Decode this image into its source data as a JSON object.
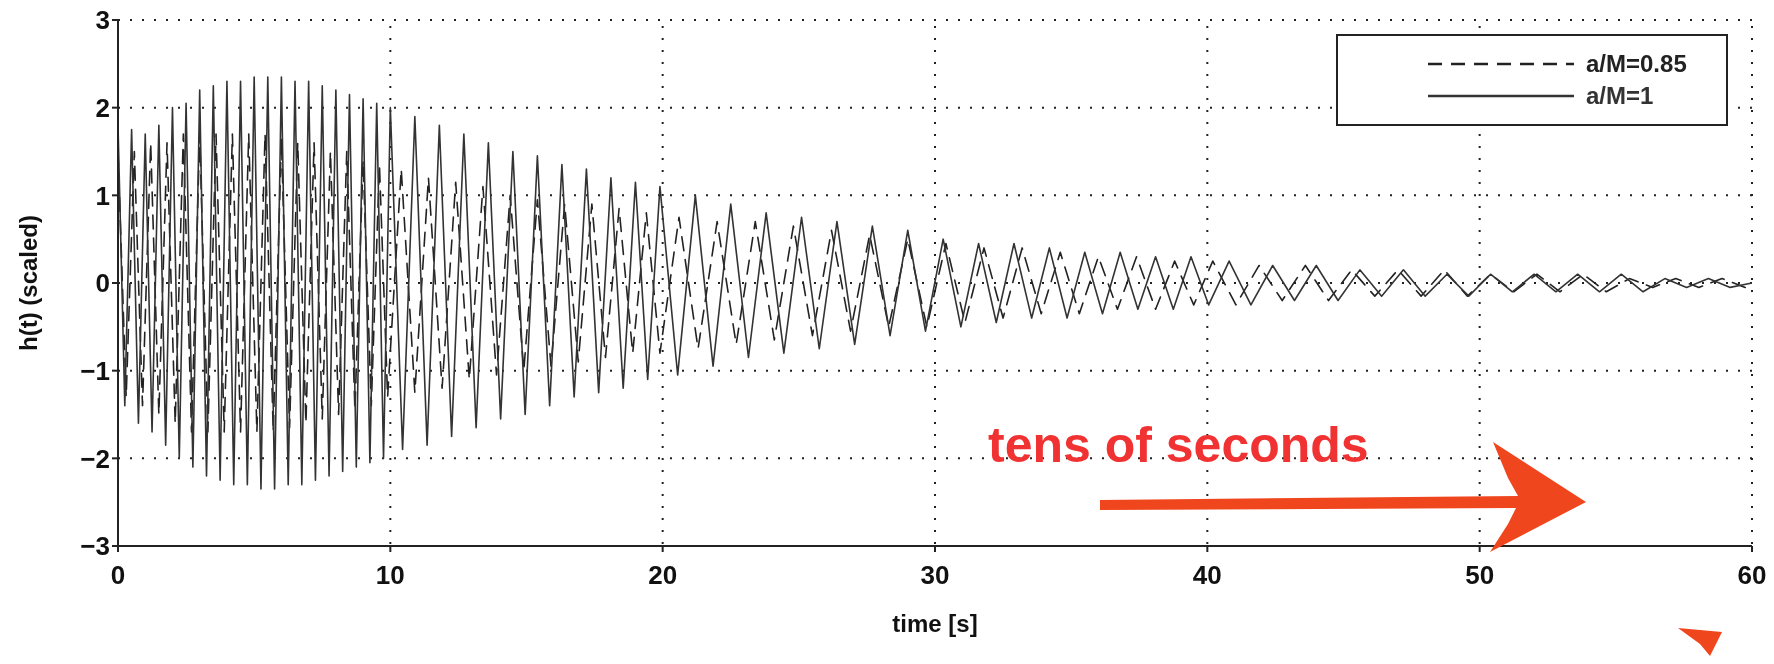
{
  "chart_data": {
    "type": "line",
    "xlabel": "time [s]",
    "ylabel": "h(t) (scaled)",
    "xlim": [
      0,
      60
    ],
    "ylim": [
      -3,
      3
    ],
    "xticks": [
      0,
      10,
      20,
      30,
      40,
      50,
      60
    ],
    "yticks": [
      -3,
      -2,
      -1,
      0,
      1,
      2,
      3
    ],
    "grid": true,
    "legend": "top right",
    "marker": "none",
    "annotations": [
      "tens of seconds"
    ],
    "series": [
      {
        "name": "a/M=0.85",
        "color": "#222222",
        "line_style": "dashed",
        "x": [
          0,
          0.3,
          0.6,
          0.9,
          1.2,
          1.5,
          1.8,
          2.1,
          2.4,
          2.7,
          3.0,
          3.3,
          3.6,
          3.9,
          4.2,
          4.5,
          4.8,
          5.1,
          5.4,
          5.7,
          6.0,
          6.3,
          6.6,
          6.9,
          7.2,
          7.5,
          7.8,
          8.1,
          8.4,
          8.7,
          9.0,
          9.3,
          9.6,
          9.9,
          10.4,
          10.9,
          11.4,
          11.9,
          12.4,
          12.9,
          13.4,
          13.9,
          14.4,
          14.9,
          15.4,
          15.9,
          16.4,
          16.9,
          17.4,
          17.9,
          18.4,
          18.9,
          19.4,
          19.9,
          20.6,
          21.3,
          22.0,
          22.7,
          23.4,
          24.1,
          24.8,
          25.5,
          26.2,
          26.9,
          27.6,
          28.3,
          29.0,
          29.7,
          30.4,
          31.1,
          31.8,
          32.5,
          33.2,
          33.9,
          34.6,
          35.3,
          36.0,
          36.7,
          37.4,
          38.1,
          38.8,
          39.5,
          40.2,
          41.05,
          41.9,
          42.75,
          43.6,
          44.45,
          45.3,
          46.15,
          47.0,
          47.85,
          48.7,
          49.55,
          50.4,
          51.25,
          52.1,
          52.95,
          53.8,
          54.65,
          55.5,
          56.35,
          57.2,
          58.05,
          58.9,
          59.75
        ],
        "values": [
          1.5,
          -1.3,
          1.5,
          -1.4,
          1.6,
          -1.5,
          1.6,
          -1.6,
          1.7,
          -1.7,
          1.7,
          -1.7,
          1.7,
          -1.7,
          1.7,
          -1.7,
          1.7,
          -1.7,
          1.7,
          -1.7,
          1.65,
          -1.65,
          1.6,
          -1.6,
          1.6,
          -1.55,
          1.5,
          -1.5,
          1.5,
          -1.45,
          1.4,
          -1.4,
          1.35,
          -1.3,
          1.3,
          -1.25,
          1.2,
          -1.2,
          1.15,
          -1.1,
          1.1,
          -1.05,
          1.0,
          -1.0,
          0.95,
          -0.95,
          0.9,
          -0.9,
          0.9,
          -0.85,
          0.85,
          -0.8,
          0.8,
          -0.8,
          0.75,
          -0.75,
          0.7,
          -0.7,
          0.7,
          -0.65,
          0.65,
          -0.6,
          0.6,
          -0.55,
          0.55,
          -0.5,
          0.5,
          -0.5,
          0.45,
          -0.45,
          0.4,
          -0.4,
          0.4,
          -0.35,
          0.35,
          -0.35,
          0.3,
          -0.3,
          0.3,
          -0.3,
          0.25,
          -0.25,
          0.25,
          -0.25,
          0.2,
          -0.2,
          0.2,
          -0.2,
          0.15,
          -0.15,
          0.15,
          -0.15,
          0.15,
          -0.15,
          0.1,
          -0.1,
          0.1,
          -0.1,
          0.1,
          -0.1,
          0.05,
          -0.05,
          0.05,
          -0.05,
          0.05,
          -0.05
        ]
      },
      {
        "name": "a/M=1",
        "color": "#333333",
        "line_style": "solid",
        "x": [
          0,
          0.25,
          0.5,
          0.75,
          1.0,
          1.25,
          1.5,
          1.75,
          2.0,
          2.25,
          2.5,
          2.75,
          3.0,
          3.25,
          3.5,
          3.75,
          4.0,
          4.25,
          4.5,
          4.75,
          5.0,
          5.25,
          5.5,
          5.75,
          6.0,
          6.25,
          6.5,
          6.75,
          7.0,
          7.25,
          7.5,
          7.75,
          8.0,
          8.25,
          8.5,
          8.75,
          9.0,
          9.25,
          9.5,
          9.75,
          10.0,
          10.45,
          10.9,
          11.35,
          11.8,
          12.25,
          12.7,
          13.15,
          13.6,
          14.05,
          14.5,
          14.95,
          15.4,
          15.85,
          16.3,
          16.75,
          17.2,
          17.65,
          18.1,
          18.55,
          19.0,
          19.45,
          19.9,
          20.55,
          21.2,
          21.85,
          22.5,
          23.15,
          23.8,
          24.45,
          25.1,
          25.75,
          26.4,
          27.05,
          27.7,
          28.35,
          29.0,
          29.65,
          30.3,
          30.95,
          31.6,
          32.25,
          32.9,
          33.55,
          34.2,
          34.85,
          35.5,
          36.15,
          36.8,
          37.45,
          38.1,
          38.75,
          39.4,
          40.05,
          40.8,
          41.6,
          42.4,
          43.2,
          44.0,
          44.8,
          45.6,
          46.4,
          47.2,
          48.0,
          48.8,
          49.6,
          50.4,
          51.2,
          52.0,
          52.8,
          53.6,
          54.4,
          55.2,
          56.0,
          56.8,
          57.6,
          58.4,
          59.2,
          60
        ],
        "values": [
          1.8,
          -1.4,
          1.75,
          -1.6,
          1.7,
          -1.7,
          1.8,
          -1.85,
          2.0,
          -2.0,
          2.05,
          -2.1,
          2.2,
          -2.2,
          2.25,
          -2.25,
          2.3,
          -2.3,
          2.3,
          -2.3,
          2.35,
          -2.35,
          2.35,
          -2.35,
          2.35,
          -2.3,
          2.3,
          -2.3,
          2.3,
          -2.25,
          2.25,
          -2.2,
          2.2,
          -2.15,
          2.15,
          -2.1,
          2.1,
          -2.05,
          2.05,
          -2.0,
          2.0,
          -1.9,
          1.9,
          -1.85,
          1.8,
          -1.75,
          1.7,
          -1.65,
          1.6,
          -1.55,
          1.5,
          -1.5,
          1.45,
          -1.4,
          1.35,
          -1.3,
          1.3,
          -1.25,
          1.2,
          -1.2,
          1.15,
          -1.1,
          1.1,
          -1.05,
          1.0,
          -0.95,
          0.9,
          -0.85,
          0.8,
          -0.8,
          0.75,
          -0.75,
          0.7,
          -0.7,
          0.65,
          -0.6,
          0.6,
          -0.55,
          0.5,
          -0.5,
          0.45,
          -0.45,
          0.45,
          -0.4,
          0.4,
          -0.4,
          0.35,
          -0.35,
          0.35,
          -0.3,
          0.3,
          -0.3,
          0.3,
          -0.25,
          0.25,
          -0.25,
          0.2,
          -0.2,
          0.2,
          -0.2,
          0.15,
          -0.15,
          0.15,
          -0.15,
          0.1,
          -0.15,
          0.1,
          -0.1,
          0.1,
          -0.1,
          0.1,
          -0.1,
          0.1,
          -0.1,
          0.05,
          -0.05,
          0.05,
          -0.05,
          0
        ]
      }
    ]
  }
}
